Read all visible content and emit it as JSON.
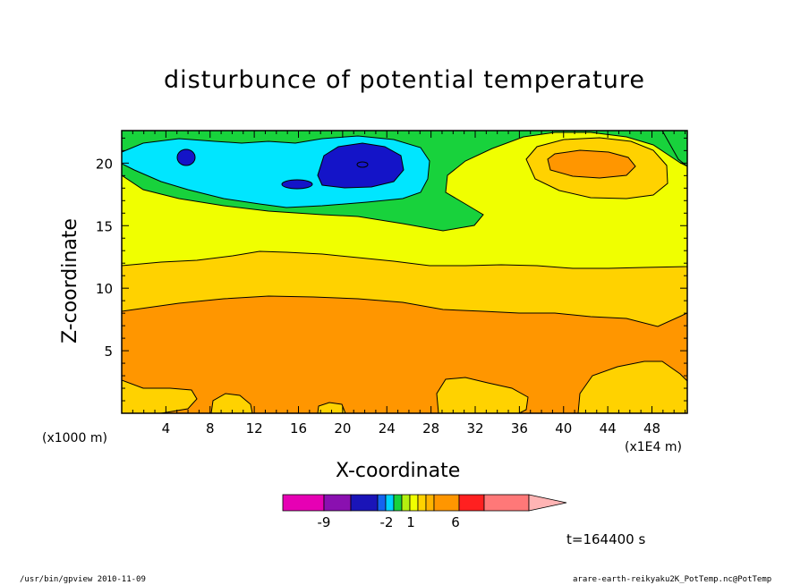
{
  "chart_data": {
    "type": "heatmap",
    "title": "disturbunce of potential temperature",
    "xlabel": "X-coordinate",
    "ylabel": "Z-coordinate",
    "x_units_left": "(x1000 m)",
    "x_units_right": "(x1E4 m)",
    "x_ticks": [
      "4",
      "8",
      "12",
      "16",
      "20",
      "24",
      "28",
      "32",
      "36",
      "40",
      "44",
      "48"
    ],
    "y_ticks": [
      "5",
      "10",
      "15",
      "20"
    ],
    "xlim": [
      0,
      51.2
    ],
    "ylim": [
      0,
      22.6
    ],
    "time_label": "t=164400 s",
    "colorbar": {
      "labels": [
        "-9",
        "-2",
        "1",
        "6"
      ],
      "colors": [
        "#e600b4",
        "#8a10b0",
        "#1a14b8",
        "#1464f0",
        "#00d2ff",
        "#18d23c",
        "#b4f010",
        "#f0ff00",
        "#ffd200",
        "#ffb400",
        "#ff9600",
        "#ff2020",
        "#ff7878",
        "#ffb4b4"
      ]
    },
    "regions": [
      {
        "name": "lower orange band",
        "value_range": "2..3",
        "z_range": [
          0,
          9
        ]
      },
      {
        "name": "middle light-orange band",
        "value_range": "1..2",
        "z_range": [
          8.5,
          12.5
        ]
      },
      {
        "name": "upper yellow band",
        "value_range": "0..1",
        "z_range": [
          12,
          19
        ]
      },
      {
        "name": "upper-left cold anomaly",
        "value_range": "-2..0",
        "x_range": [
          0,
          30
        ],
        "z_range": [
          16,
          22.6
        ]
      },
      {
        "name": "upper-right warm anomaly",
        "value_range": "1..3",
        "x_range": [
          36,
          49
        ],
        "z_range": [
          18,
          21.5
        ]
      }
    ]
  },
  "footer": {
    "left": "/usr/bin/gpview  2010-11-09",
    "right": "arare-earth-reikyaku2K_PotTemp.nc@PotTemp"
  }
}
